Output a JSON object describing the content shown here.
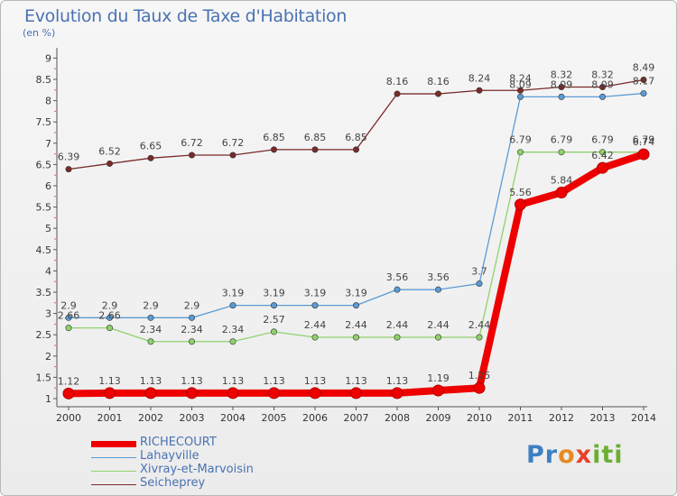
{
  "header": {
    "title": "Evolution du Taux de Taxe d'Habitation",
    "unit": "(en %)"
  },
  "brand": {
    "part1": "Pr",
    "part2": "o",
    "part3": "x",
    "part4": "iti"
  },
  "chart_data": {
    "type": "line",
    "x": [
      "2000",
      "2001",
      "2002",
      "2003",
      "2004",
      "2005",
      "2006",
      "2007",
      "2008",
      "2009",
      "2010",
      "2011",
      "2012",
      "2013",
      "2014"
    ],
    "ylim": [
      1,
      9
    ],
    "yticks": [
      "1",
      "1.5",
      "2",
      "2.5",
      "3",
      "3.5",
      "4",
      "4.5",
      "5",
      "5.5",
      "6",
      "6.5",
      "7",
      "7.5",
      "8",
      "8.5",
      "9"
    ],
    "grid": false,
    "legend": "bottom-left",
    "series": [
      {
        "name": "RICHECOURT",
        "color": "#ee0000",
        "values": [
          1.12,
          1.13,
          1.13,
          1.13,
          1.13,
          1.13,
          1.13,
          1.13,
          1.13,
          1.19,
          1.25,
          5.56,
          5.84,
          6.42,
          6.74
        ],
        "labels": [
          "1.12",
          "1.13",
          "1.13",
          "1.13",
          "1.13",
          "1.13",
          "1.13",
          "1.13",
          "1.13",
          "1.19",
          "1.25",
          "5.56",
          "5.84",
          "6.42",
          "6.74"
        ]
      },
      {
        "name": "Lahayville",
        "color": "#5b9bd5",
        "values": [
          2.9,
          2.9,
          2.9,
          2.9,
          3.19,
          3.19,
          3.19,
          3.19,
          3.56,
          3.56,
          3.7,
          8.09,
          8.09,
          8.09,
          8.17
        ],
        "labels": [
          "2.9",
          "2.9",
          "2.9",
          "2.9",
          "3.19",
          "3.19",
          "3.19",
          "3.19",
          "3.56",
          "3.56",
          "3.7",
          "8.09",
          "8.09",
          "8.09",
          "8.17"
        ]
      },
      {
        "name": "Xivray-et-Marvoisin",
        "color": "#8fd26b",
        "values": [
          2.66,
          2.66,
          2.34,
          2.34,
          2.34,
          2.57,
          2.44,
          2.44,
          2.44,
          2.44,
          2.44,
          6.79,
          6.79,
          6.79,
          6.79
        ],
        "labels": [
          "2.66",
          "2.66",
          "2.34",
          "2.34",
          "2.34",
          "2.57",
          "2.44",
          "2.44",
          "2.44",
          "2.44",
          "2.44",
          "6.79",
          "6.79",
          "6.79",
          "6.79"
        ]
      },
      {
        "name": "Seicheprey",
        "color": "#7a2a2a",
        "values": [
          6.39,
          6.52,
          6.65,
          6.72,
          6.72,
          6.85,
          6.85,
          6.85,
          8.16,
          8.16,
          8.24,
          8.24,
          8.32,
          8.32,
          8.49
        ],
        "labels": [
          "6.39",
          "6.52",
          "6.65",
          "6.72",
          "6.72",
          "6.85",
          "6.85",
          "6.85",
          "8.16",
          "8.16",
          "8.24",
          "8.24",
          "8.32",
          "8.32",
          "8.49"
        ]
      }
    ]
  }
}
